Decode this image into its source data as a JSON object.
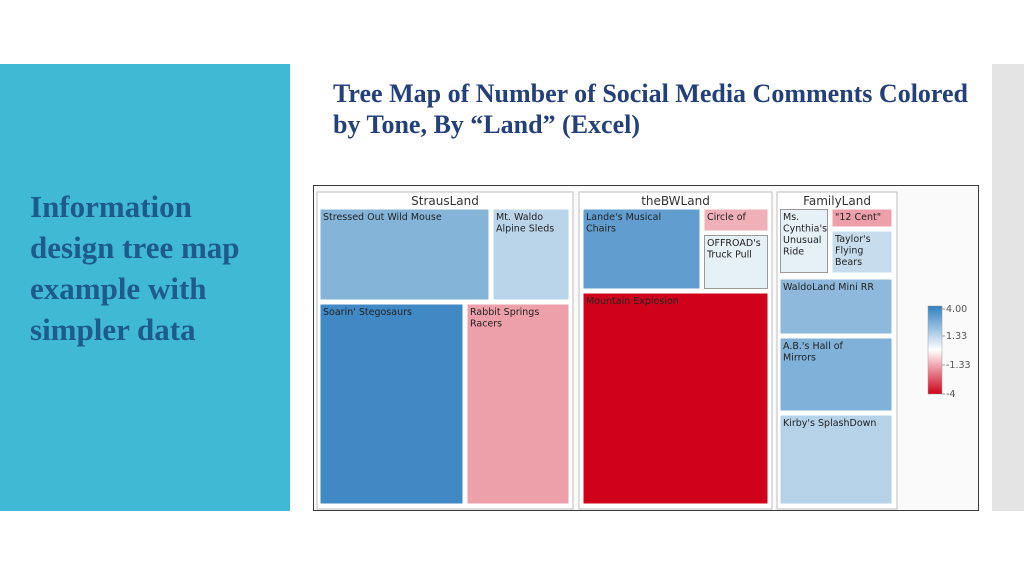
{
  "slide": {
    "title": "Tree Map of Number of Social Media Comments Colored by Tone, By “Land” (Excel)",
    "side_title": "Information design tree map example with simpler data"
  },
  "colors": {
    "accent_panel": "#40b9d4",
    "title_text": "#23407a",
    "side_text": "#1e5a8c",
    "scale_high": "#2f7fbf",
    "scale_mid": "#ffffff",
    "scale_low": "#d0021b"
  },
  "chart_data": {
    "type": "treemap",
    "title": "",
    "groups": [
      {
        "name": "StrausLand",
        "items": [
          {
            "label": "Stressed Out Wild Mouse",
            "tone": 2.2
          },
          {
            "label": "Mt. Waldo Alpine Sleds",
            "tone": 1.0
          },
          {
            "label": "Soarin' Stegosaurs",
            "tone": 4.0
          },
          {
            "label": "Rabbit Springs Racers",
            "tone": -1.2
          }
        ]
      },
      {
        "name": "theBWLand",
        "items": [
          {
            "label": "Lande's Musical Chairs",
            "tone": 3.0
          },
          {
            "label": "Circle of",
            "tone": -0.9
          },
          {
            "label": "OFFROAD's Truck Pull",
            "tone": 0.0
          },
          {
            "label": "Mountain Explosion",
            "tone": -4.0
          }
        ]
      },
      {
        "name": "FamilyLand",
        "items": [
          {
            "label": "Ms. Cynthia's Unusual Ride",
            "tone": 0.0
          },
          {
            "label": "\"12 Cent\"",
            "tone": -1.2
          },
          {
            "label": "Taylor's Flying Bears",
            "tone": 0.7
          },
          {
            "label": "WaldoLand Mini RR",
            "tone": 2.0
          },
          {
            "label": "A.B.'s Hall of Mirrors",
            "tone": 2.3
          },
          {
            "label": "Kirby's SplashDown",
            "tone": 1.1
          }
        ]
      }
    ],
    "color_scale": {
      "labels": [
        "4.00",
        "1.33",
        "-1.33",
        "-4"
      ],
      "max": 4,
      "min": -4
    },
    "legend": "right"
  }
}
